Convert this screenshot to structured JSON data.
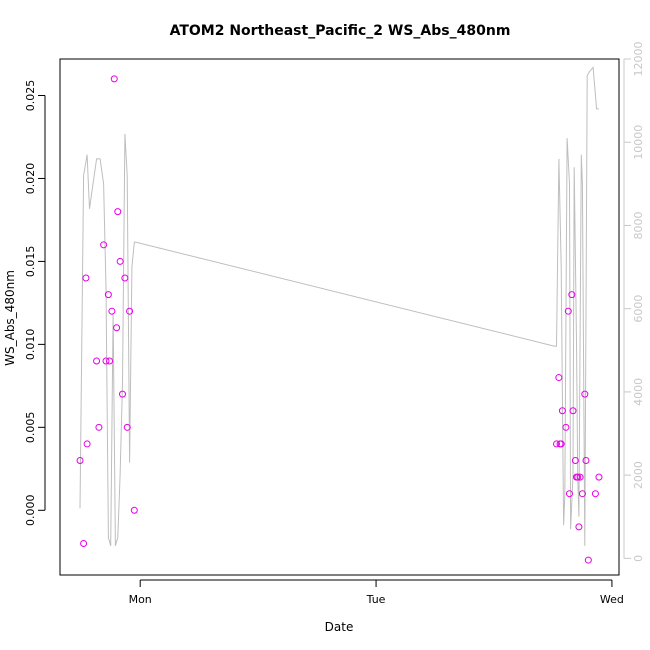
{
  "chart_data": {
    "type": "scatter",
    "title": "ATOM2 Northeast_Pacific_2 WS_Abs_480nm",
    "xlabel": "Date",
    "ylabel": "WS_Abs_480nm",
    "x_ticks": [
      "Mon",
      "Tue",
      "Wed"
    ],
    "y_ticks": [
      "0.000",
      "0.005",
      "0.010",
      "0.015",
      "0.020",
      "0.025"
    ],
    "y_tick_values": [
      0,
      0.005,
      0.01,
      0.015,
      0.02,
      0.025
    ],
    "y2_ticks": [
      "0",
      "2000",
      "4000",
      "6000",
      "8000",
      "10000",
      "12000"
    ],
    "y2_tick_values": [
      0,
      2000,
      4000,
      6000,
      8000,
      10000,
      12000
    ],
    "xlim_days": [
      -0.34,
      2.03
    ],
    "ylim": [
      -0.0039,
      0.0272
    ],
    "y2lim": [
      -400,
      12000
    ],
    "grid": false,
    "colors": {
      "points": "#e600e6",
      "line": "#bebebe",
      "axis": "#000000",
      "right_axis": "#c8c8c8"
    },
    "points": {
      "name": "WS_Abs_480nm",
      "x_days": [
        -0.255,
        -0.24,
        -0.23,
        -0.225,
        -0.185,
        -0.175,
        -0.155,
        -0.145,
        -0.135,
        -0.13,
        -0.12,
        -0.11,
        -0.1,
        -0.095,
        -0.085,
        -0.075,
        -0.065,
        -0.055,
        -0.045,
        -0.025,
        1.765,
        1.775,
        1.78,
        1.785,
        1.79,
        1.805,
        1.815,
        1.82,
        1.83,
        1.835,
        1.845,
        1.85,
        1.855,
        1.86,
        1.865,
        1.875,
        1.885,
        1.89,
        1.9,
        1.93,
        1.945
      ],
      "y": [
        0.003,
        -0.002,
        0.014,
        0.004,
        0.009,
        0.005,
        0.016,
        0.009,
        0.013,
        0.009,
        0.012,
        0.026,
        0.011,
        0.018,
        0.015,
        0.007,
        0.014,
        0.005,
        0.012,
        0.0,
        0.004,
        0.008,
        0.004,
        0.004,
        0.006,
        0.005,
        0.012,
        0.001,
        0.013,
        0.006,
        0.003,
        0.002,
        0.002,
        -0.001,
        0.002,
        0.001,
        0.007,
        0.003,
        -0.003,
        0.001,
        0.002
      ]
    },
    "line_series": {
      "axis": "right",
      "x_days": [
        -0.255,
        -0.24,
        -0.225,
        -0.215,
        -0.2,
        -0.185,
        -0.17,
        -0.155,
        -0.145,
        -0.135,
        -0.125,
        -0.115,
        -0.105,
        -0.095,
        -0.085,
        -0.075,
        -0.065,
        -0.055,
        -0.045,
        -0.035,
        -0.025,
        -0.02,
        1.755,
        1.765,
        1.775,
        1.785,
        1.795,
        1.8,
        1.81,
        1.82,
        1.825,
        1.835,
        1.84,
        1.85,
        1.855,
        1.86,
        1.87,
        1.875,
        1.885,
        1.895,
        1.905,
        1.92,
        1.935,
        1.945
      ],
      "y": [
        1200,
        9200,
        9700,
        8400,
        9000,
        9600,
        9600,
        9000,
        6500,
        500,
        300,
        5900,
        300,
        500,
        2000,
        4200,
        10200,
        9200,
        2300,
        7000,
        7600,
        7600,
        5100,
        5100,
        9600,
        7000,
        800,
        1500,
        10100,
        9000,
        700,
        2000,
        9400,
        5200,
        2000,
        1000,
        9700,
        9000,
        300,
        11600,
        11700,
        11800,
        10800,
        10800
      ]
    }
  }
}
